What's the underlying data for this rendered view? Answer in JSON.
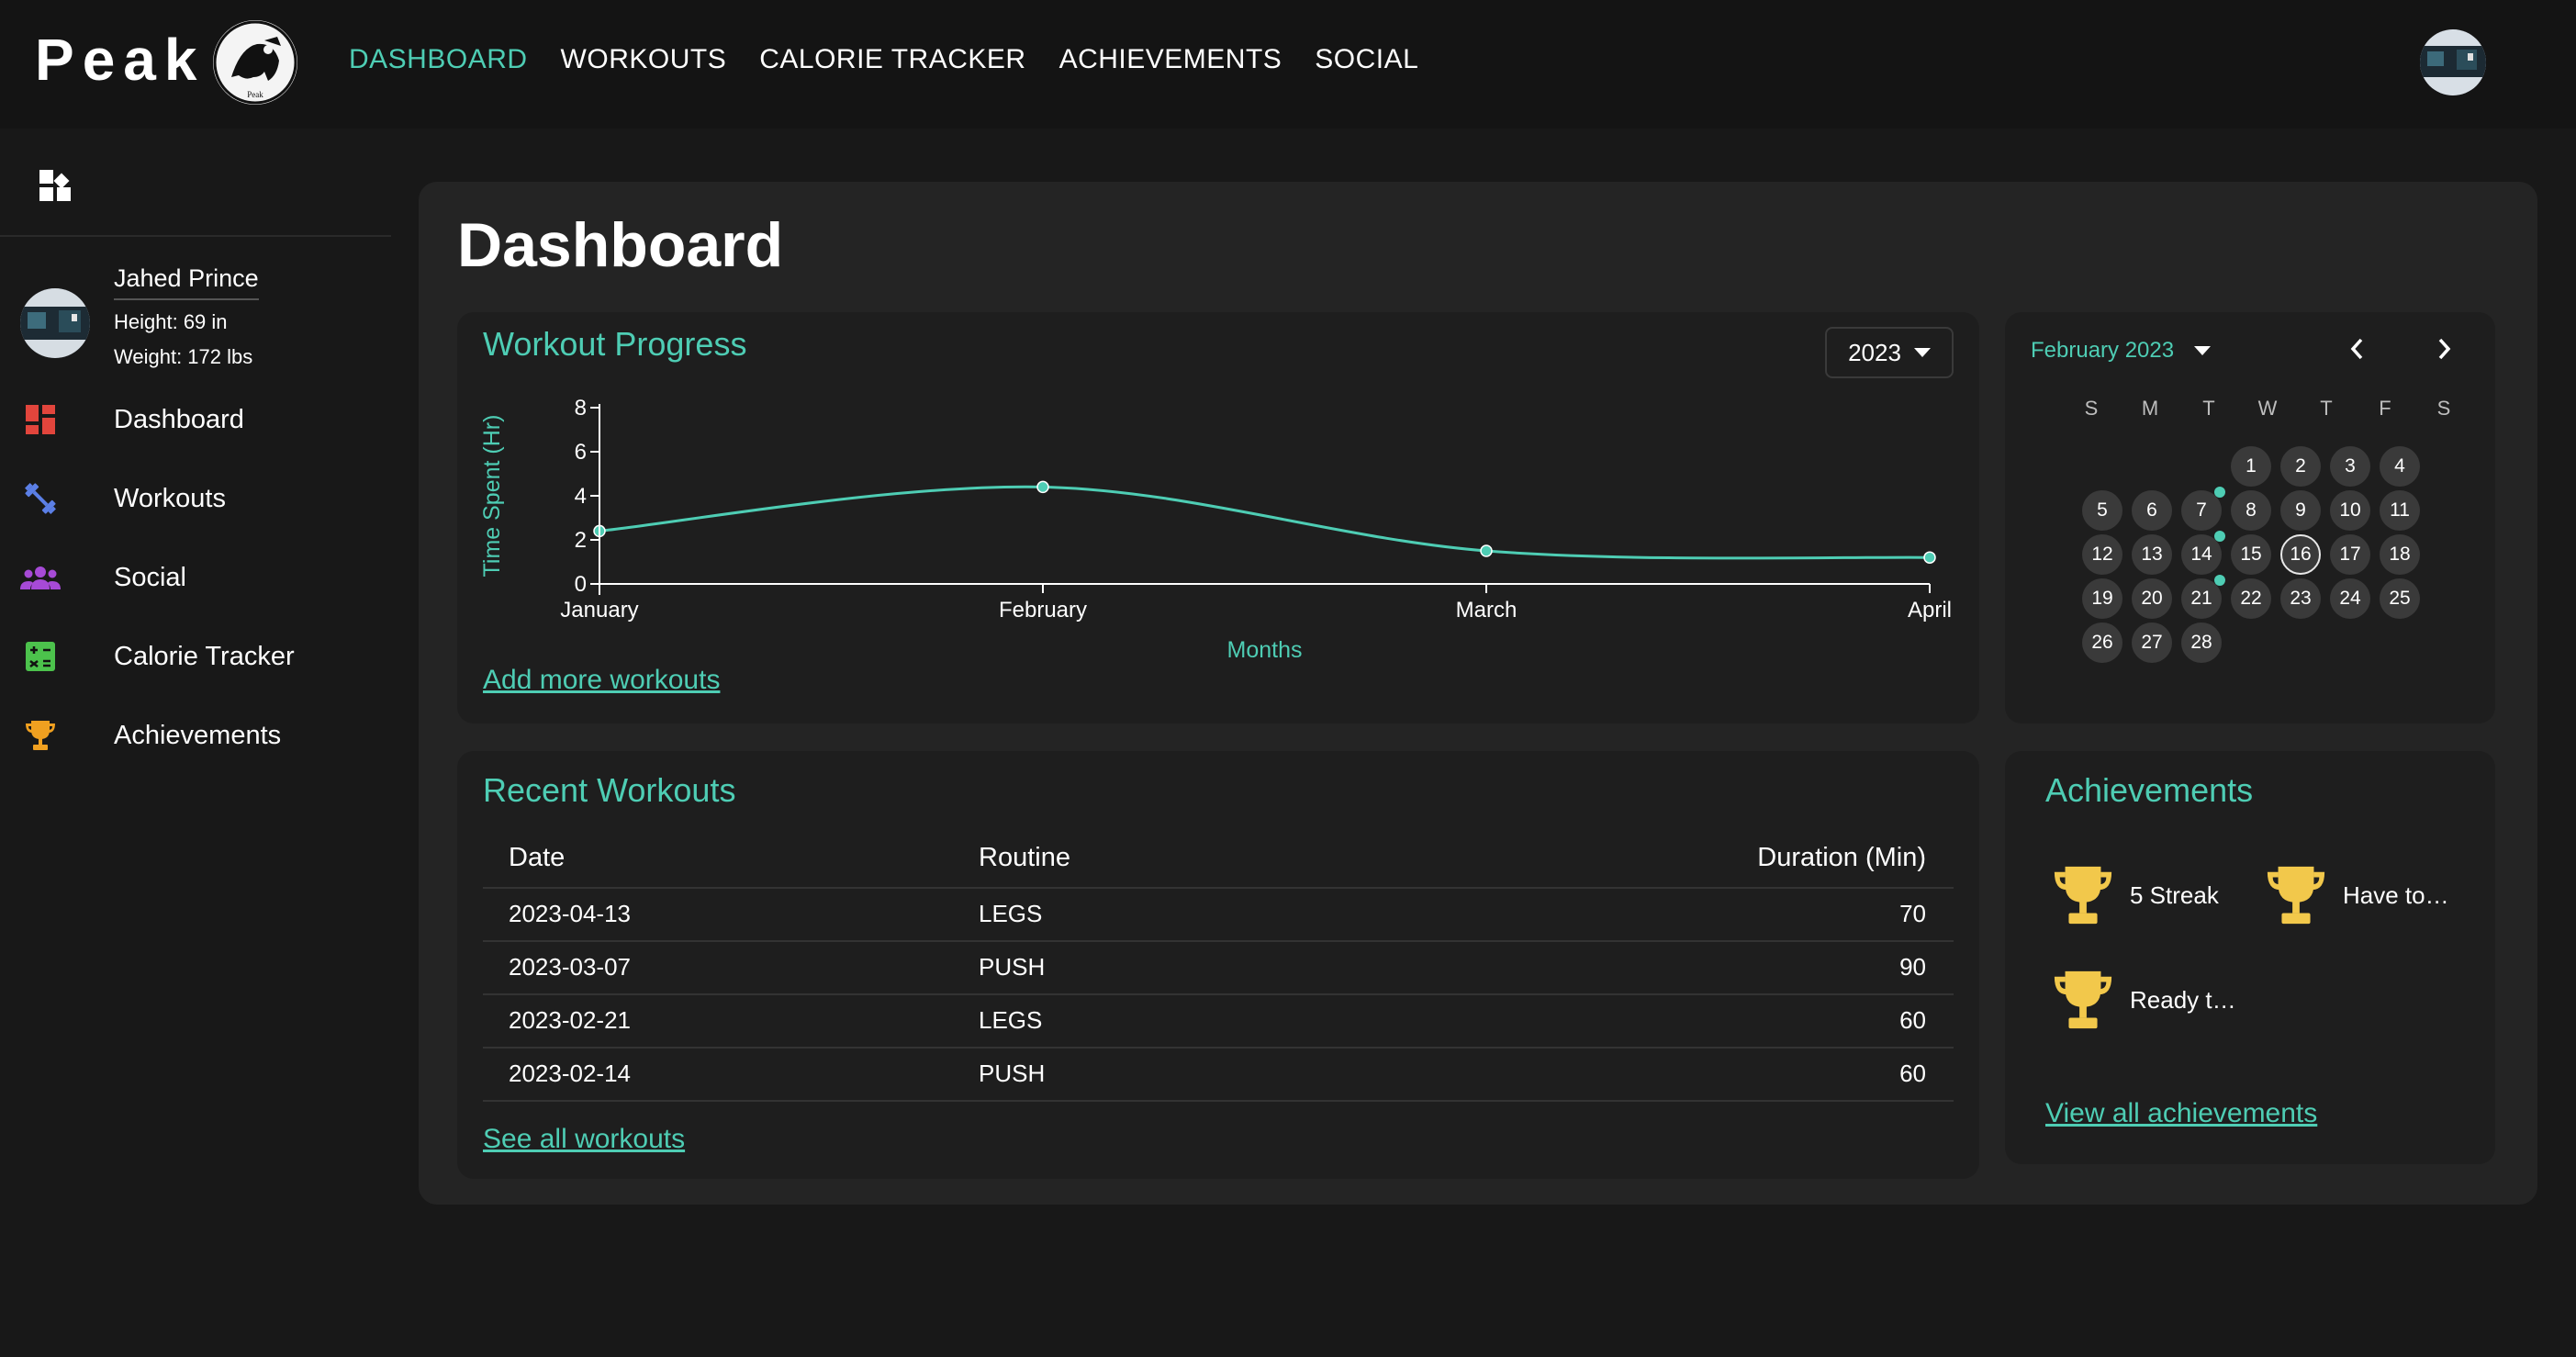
{
  "brand": {
    "name": "Peak",
    "logo_text": "Peak"
  },
  "nav": [
    {
      "label": "DASHBOARD",
      "active": true
    },
    {
      "label": "WORKOUTS",
      "active": false
    },
    {
      "label": "CALORIE TRACKER",
      "active": false
    },
    {
      "label": "ACHIEVEMENTS",
      "active": false
    },
    {
      "label": "SOCIAL",
      "active": false
    }
  ],
  "sidebar": {
    "profile": {
      "name": "Jahed Prince",
      "height": "Height: 69 in",
      "weight": "Weight: 172 lbs"
    },
    "items": [
      {
        "label": "Dashboard",
        "icon": "dashboard-icon",
        "color": "#e2453c"
      },
      {
        "label": "Workouts",
        "icon": "dumbbell-icon",
        "color": "#5b7fe6"
      },
      {
        "label": "Social",
        "icon": "people-icon",
        "color": "#a64ad6"
      },
      {
        "label": "Calorie Tracker",
        "icon": "calculator-icon",
        "color": "#4cc24c"
      },
      {
        "label": "Achievements",
        "icon": "trophy-icon",
        "color": "#f0a020"
      }
    ]
  },
  "page": {
    "title": "Dashboard"
  },
  "workout_progress": {
    "title": "Workout Progress",
    "year": "2023",
    "add_link": "Add more workouts"
  },
  "chart_data": {
    "type": "line",
    "x": [
      "January",
      "February",
      "March",
      "April"
    ],
    "series": [
      {
        "values": [
          2.4,
          4.4,
          1.5,
          1.2
        ]
      }
    ],
    "ylabel": "Time Spent (Hr)",
    "xlabel": "Months",
    "ylim": [
      0,
      8
    ],
    "yticks": [
      0,
      2,
      4,
      6,
      8
    ],
    "grid": false,
    "color": "#4ecdb4"
  },
  "calendar": {
    "month_label": "February 2023",
    "prev_icon": "‹",
    "next_icon": "›",
    "weekdays": [
      "S",
      "M",
      "T",
      "W",
      "T",
      "F",
      "S"
    ],
    "first_weekday": 3,
    "days": 28,
    "today": 16,
    "workout_days": [
      14,
      21,
      7
    ]
  },
  "recent_workouts": {
    "title": "Recent Workouts",
    "columns": [
      "Date",
      "Routine",
      "Duration (Min)"
    ],
    "rows": [
      [
        "2023-04-13",
        "LEGS",
        "70"
      ],
      [
        "2023-03-07",
        "PUSH",
        "90"
      ],
      [
        "2023-02-21",
        "LEGS",
        "60"
      ],
      [
        "2023-02-14",
        "PUSH",
        "60"
      ]
    ],
    "see_all": "See all workouts"
  },
  "achievements": {
    "title": "Achievements",
    "items": [
      "5 Streak",
      "Have to…",
      "Ready t…"
    ],
    "trophy_color": "#f2c84b",
    "view_all": "View all achievements"
  }
}
